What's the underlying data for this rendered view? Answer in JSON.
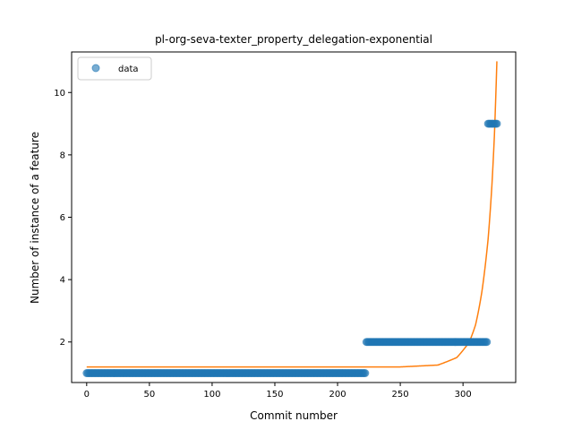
{
  "chart_data": {
    "type": "scatter",
    "title": "pl-org-seva-texter_property_delegation-exponential",
    "xlabel": "Commit number",
    "ylabel": "Number of instance of a feature",
    "xlim": [
      -12,
      342
    ],
    "ylim": [
      0.7,
      11.3
    ],
    "xticks": [
      0,
      50,
      100,
      150,
      200,
      250,
      300
    ],
    "yticks": [
      2,
      4,
      6,
      8,
      10
    ],
    "grid": false,
    "legend": {
      "placement": "top-left",
      "entries": [
        "data"
      ]
    },
    "series": [
      {
        "name": "data",
        "kind": "points",
        "color": "#1f77b4",
        "segments": [
          {
            "x_start": 0,
            "x_end": 222,
            "y": 1
          },
          {
            "x_start": 223,
            "x_end": 319,
            "y": 2
          },
          {
            "x_start": 320,
            "x_end": 327,
            "y": 9
          }
        ]
      },
      {
        "kind": "exponential-fit",
        "color": "#ff7f0e",
        "x_start": 0,
        "x_end": 327,
        "baseline": 1.2,
        "points": [
          [
            0,
            1.2
          ],
          [
            250,
            1.2
          ],
          [
            280,
            1.26
          ],
          [
            295,
            1.5
          ],
          [
            305,
            2.0
          ],
          [
            310,
            2.55
          ],
          [
            315,
            3.6
          ],
          [
            320,
            5.3
          ],
          [
            323,
            7.0
          ],
          [
            325,
            8.6
          ],
          [
            327,
            11.0
          ]
        ]
      }
    ]
  }
}
